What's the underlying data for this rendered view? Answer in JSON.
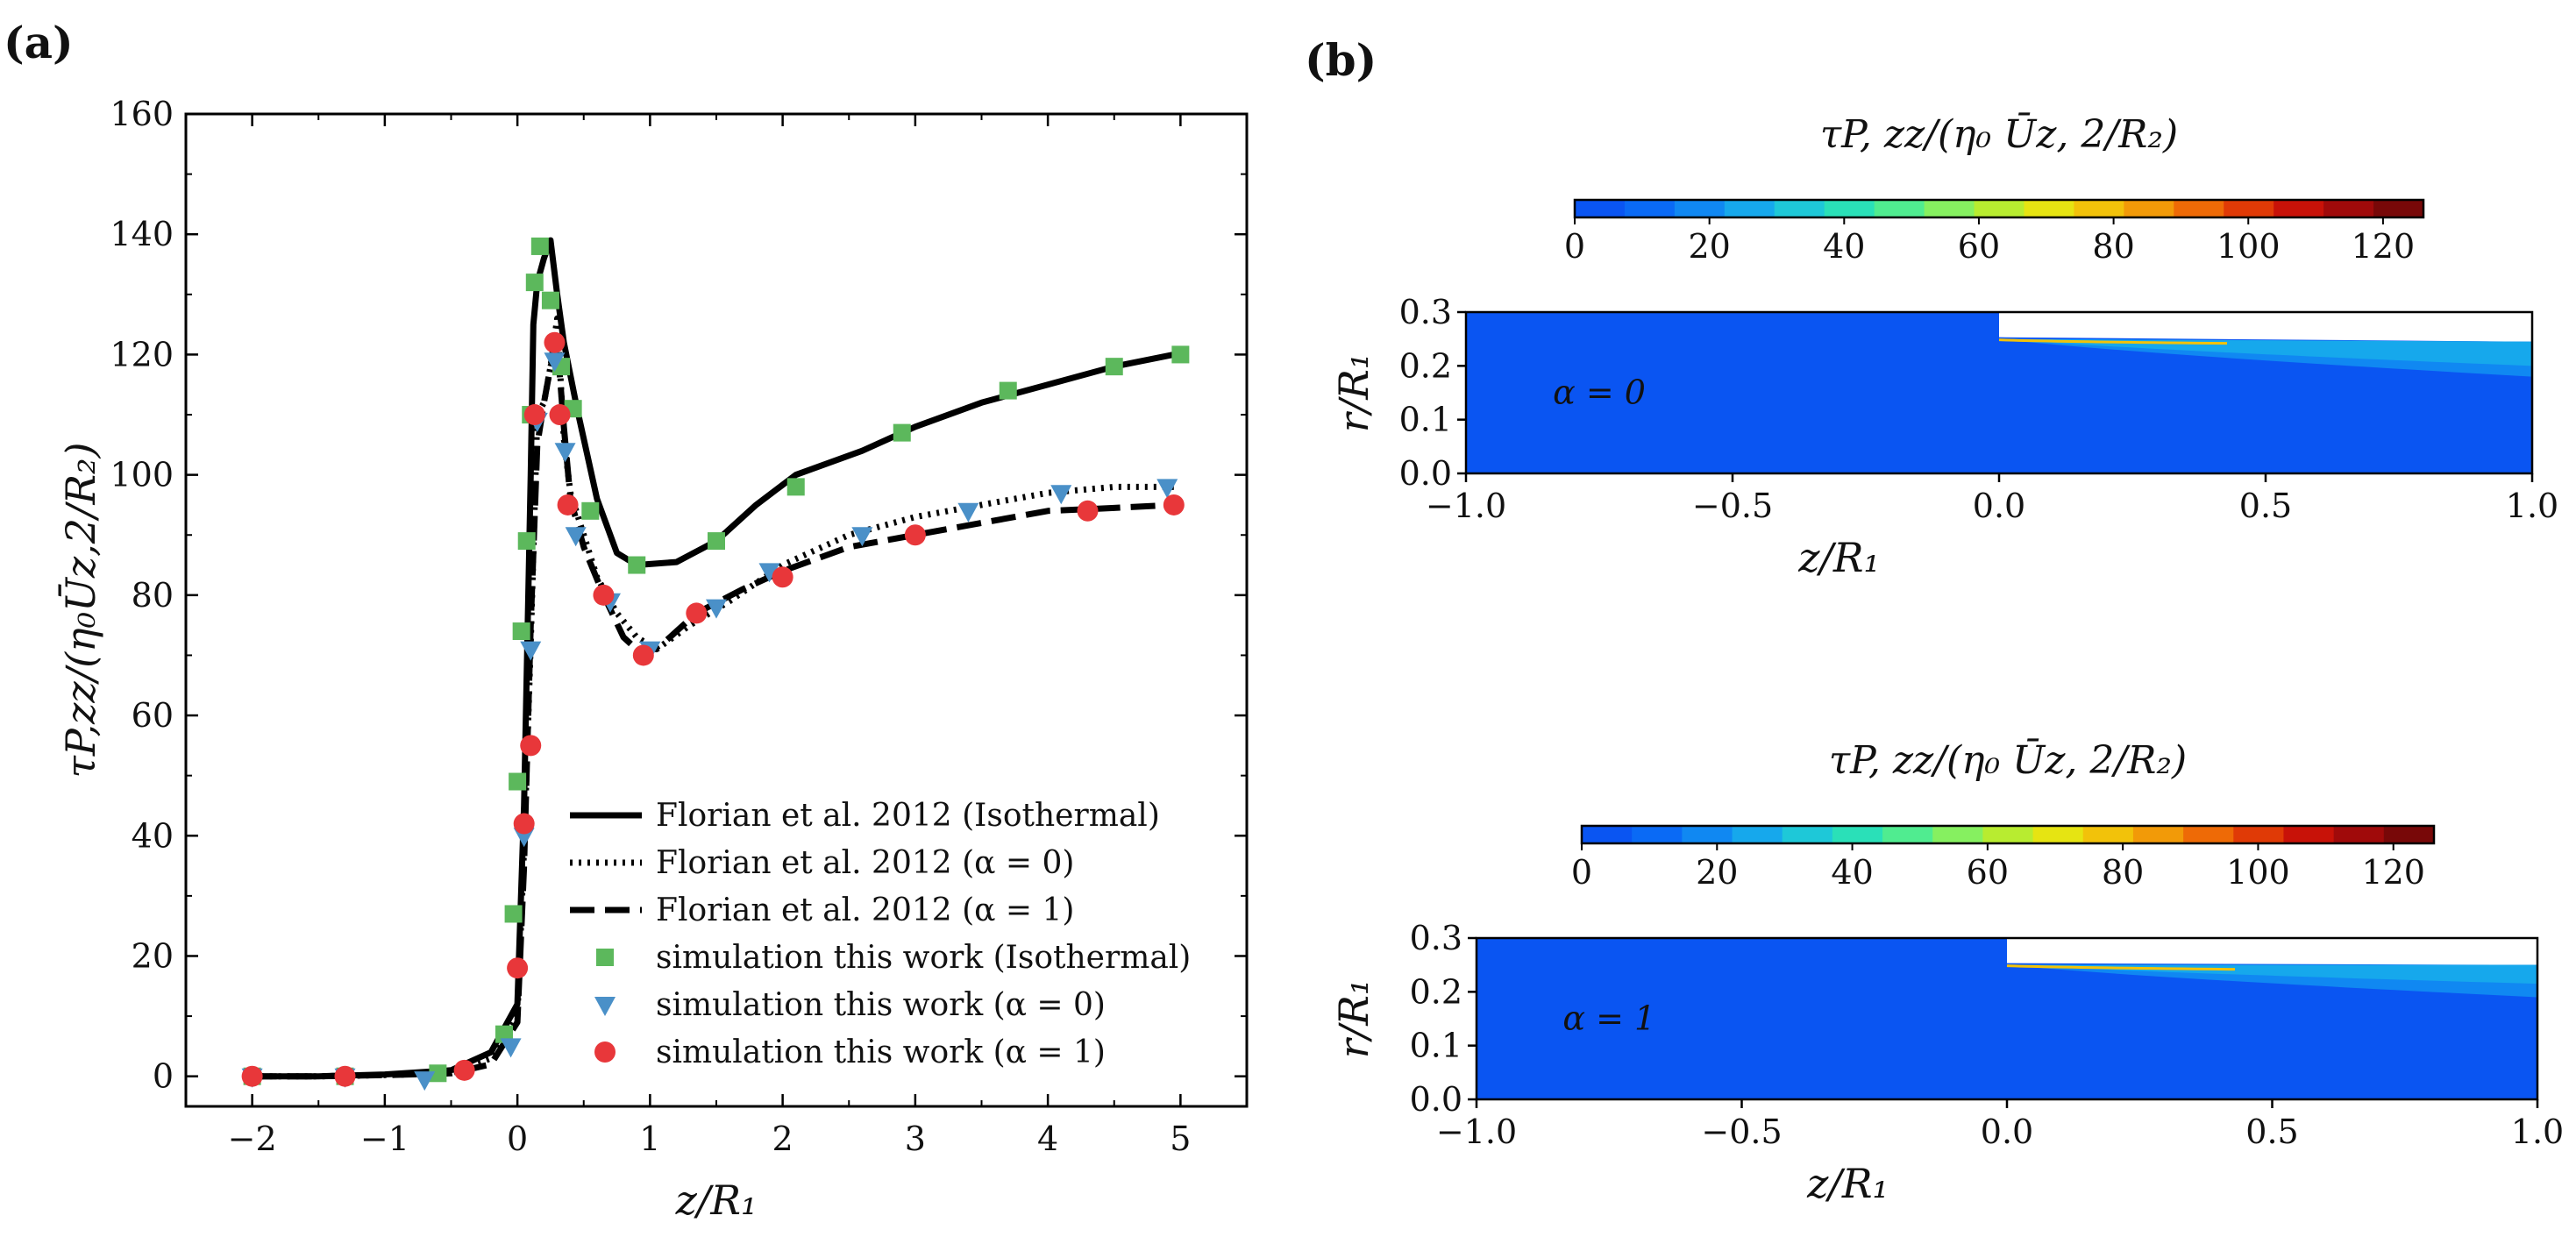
{
  "panel_a": {
    "label": "(a)"
  },
  "panel_b": {
    "label": "(b)"
  },
  "colors": {
    "isothermal": "#5cb85c",
    "alpha0": "#4a90c8",
    "alpha1": "#e8373a",
    "line": "#000000"
  },
  "colormap": [
    "#0a55f2",
    "#0a6af5",
    "#1088f2",
    "#16a8ec",
    "#1ec8d8",
    "#2ae0b8",
    "#50ec90",
    "#86f060",
    "#b8ec30",
    "#e6e412",
    "#f2c20a",
    "#f29a08",
    "#ee6a06",
    "#e03a06",
    "#c81208",
    "#a00a0a",
    "#780808"
  ],
  "chart_data": [
    {
      "type": "line",
      "panel": "a",
      "xlabel": "z/R₁",
      "ylabel": "τP,zz/(η₀Ūz,2/R₂)",
      "xlim": [
        -2.5,
        5.5
      ],
      "ylim": [
        -5,
        160
      ],
      "xticks": [
        -2,
        -1,
        0,
        1,
        2,
        3,
        4,
        5
      ],
      "xtick_labels": [
        "−2",
        "−1",
        "0",
        "1",
        "2",
        "3",
        "4",
        "5"
      ],
      "yticks": [
        0,
        20,
        40,
        60,
        80,
        100,
        120,
        140,
        160
      ],
      "ytick_labels": [
        "0",
        "20",
        "40",
        "60",
        "80",
        "100",
        "120",
        "140",
        "160"
      ],
      "legend_position": "lower-right",
      "series": [
        {
          "name": "Florian et al. 2012 (Isothermal)",
          "kind": "line",
          "style": "solid",
          "x": [
            -2.0,
            -1.5,
            -1.0,
            -0.5,
            -0.2,
            0.0,
            0.05,
            0.1,
            0.12,
            0.15,
            0.2,
            0.25,
            0.3,
            0.35,
            0.45,
            0.6,
            0.75,
            0.9,
            1.2,
            1.5,
            1.8,
            2.1,
            2.6,
            3.0,
            3.5,
            4.0,
            4.5,
            4.95
          ],
          "values": [
            0,
            0,
            0.3,
            1,
            4,
            12,
            45,
            100,
            125,
            132,
            136,
            139,
            130,
            122,
            111,
            96,
            87,
            85,
            85.5,
            89,
            95,
            100,
            104,
            108,
            112,
            115,
            118,
            120
          ]
        },
        {
          "name": "Florian et al. 2012 (α = 0)",
          "kind": "line",
          "style": "dotted",
          "x": [
            -2.0,
            -1.5,
            -1.0,
            -0.5,
            -0.2,
            0.0,
            0.05,
            0.1,
            0.15,
            0.2,
            0.25,
            0.3,
            0.35,
            0.4,
            0.5,
            0.6,
            0.75,
            0.9,
            1.05,
            1.3,
            1.6,
            2.0,
            2.5,
            3.0,
            3.5,
            4.0,
            4.5,
            4.95
          ],
          "values": [
            0,
            0,
            0.2,
            0.5,
            3,
            10,
            38,
            72,
            110,
            112,
            118,
            126,
            106,
            97,
            90,
            83,
            77,
            73,
            71,
            75,
            79,
            85,
            90,
            93,
            95,
            97,
            98,
            98
          ]
        },
        {
          "name": "Florian et al. 2012 (α = 1)",
          "kind": "line",
          "style": "dashed",
          "x": [
            -2.0,
            -1.5,
            -1.0,
            -0.5,
            -0.2,
            0.0,
            0.05,
            0.1,
            0.15,
            0.2,
            0.25,
            0.3,
            0.35,
            0.4,
            0.5,
            0.65,
            0.8,
            0.95,
            1.1,
            1.35,
            1.7,
            2.0,
            2.5,
            3.0,
            3.5,
            4.0,
            4.5,
            4.95
          ],
          "values": [
            0,
            0,
            0.2,
            0.5,
            2,
            9,
            35,
            75,
            105,
            112,
            118,
            122,
            108,
            96,
            88,
            80,
            73,
            70,
            72,
            77,
            81,
            84,
            88,
            90,
            92,
            94,
            94.5,
            95
          ]
        },
        {
          "name": "simulation this work (Isothermal)",
          "kind": "scatter",
          "marker": "square",
          "x": [
            -2.0,
            -1.3,
            -0.6,
            -0.1,
            -0.03,
            0.0,
            0.03,
            0.07,
            0.1,
            0.13,
            0.17,
            0.25,
            0.33,
            0.42,
            0.55,
            0.9,
            1.5,
            2.1,
            2.9,
            3.7,
            4.5,
            5.0
          ],
          "values": [
            0,
            0,
            0.5,
            7,
            27,
            49,
            74,
            89,
            110,
            132,
            138,
            129,
            118,
            111,
            94,
            85,
            89,
            98,
            107,
            114,
            118,
            120
          ]
        },
        {
          "name": "simulation this work (α = 0)",
          "kind": "scatter",
          "marker": "triangle-down",
          "x": [
            -2.0,
            -1.3,
            -0.7,
            -0.05,
            0.05,
            0.1,
            0.15,
            0.28,
            0.36,
            0.44,
            0.7,
            1.0,
            1.5,
            1.9,
            2.6,
            3.4,
            4.1,
            4.9
          ],
          "values": [
            0,
            0,
            -0.5,
            5,
            40,
            71,
            109,
            119,
            104,
            90,
            79,
            71,
            78,
            84,
            90,
            94,
            97,
            98
          ]
        },
        {
          "name": "simulation this work (α = 1)",
          "kind": "scatter",
          "marker": "circle",
          "x": [
            -2.0,
            -1.3,
            -0.4,
            0.0,
            0.05,
            0.1,
            0.13,
            0.28,
            0.32,
            0.38,
            0.65,
            0.95,
            1.35,
            2.0,
            3.0,
            4.3,
            4.95
          ],
          "values": [
            0,
            0,
            1,
            18,
            42,
            55,
            110,
            122,
            110,
            95,
            80,
            70,
            77,
            83,
            90,
            94,
            95
          ]
        }
      ]
    },
    {
      "type": "heatmap",
      "panel": "b-top",
      "title": "τP, zz/(η₀ Ūz, 2/R₂)",
      "annotation": "α = 0",
      "xlabel": "z/R₁",
      "ylabel": "r/R₁",
      "xlim": [
        -1.0,
        1.0
      ],
      "ylim": [
        0.0,
        0.3
      ],
      "xticks": [
        -1.0,
        -0.5,
        0.0,
        0.5,
        1.0
      ],
      "xtick_labels": [
        "−1.0",
        "−0.5",
        "0.0",
        "0.5",
        "1.0"
      ],
      "yticks": [
        0.0,
        0.1,
        0.2,
        0.3
      ],
      "ytick_labels": [
        "0.0",
        "0.1",
        "0.2",
        "0.3"
      ],
      "colorbar": {
        "min": 0,
        "max": 126,
        "ticks": [
          0,
          20,
          40,
          60,
          80,
          100,
          120
        ],
        "tick_labels": [
          "0",
          "20",
          "40",
          "60",
          "80",
          "100",
          "120"
        ]
      },
      "boundary": {
        "wall_z": 0.0,
        "wall_r": 0.3,
        "free_surface_r_start": 0.25,
        "free_surface_r_end": 0.245
      },
      "bands": [
        {
          "value": 25,
          "r_start": 0.25,
          "r_end": 0.2
        },
        {
          "value": 15,
          "r_start": 0.25,
          "r_end": 0.18
        }
      ]
    },
    {
      "type": "heatmap",
      "panel": "b-bottom",
      "title": "τP, zz/(η₀ Ūz, 2/R₂)",
      "annotation": "α = 1",
      "xlabel": "z/R₁",
      "ylabel": "r/R₁",
      "xlim": [
        -1.0,
        1.0
      ],
      "ylim": [
        0.0,
        0.3
      ],
      "xticks": [
        -1.0,
        -0.5,
        0.0,
        0.5,
        1.0
      ],
      "xtick_labels": [
        "−1.0",
        "−0.5",
        "0.0",
        "0.5",
        "1.0"
      ],
      "yticks": [
        0.0,
        0.1,
        0.2,
        0.3
      ],
      "ytick_labels": [
        "0.0",
        "0.1",
        "0.2",
        "0.3"
      ],
      "colorbar": {
        "min": 0,
        "max": 126,
        "ticks": [
          0,
          20,
          40,
          60,
          80,
          100,
          120
        ],
        "tick_labels": [
          "0",
          "20",
          "40",
          "60",
          "80",
          "100",
          "120"
        ]
      },
      "boundary": {
        "wall_z": 0.0,
        "wall_r": 0.3,
        "free_surface_r_start": 0.25,
        "free_surface_r_end": 0.25
      },
      "bands": [
        {
          "value": 25,
          "r_start": 0.25,
          "r_end": 0.215
        },
        {
          "value": 15,
          "r_start": 0.25,
          "r_end": 0.19
        }
      ]
    }
  ]
}
